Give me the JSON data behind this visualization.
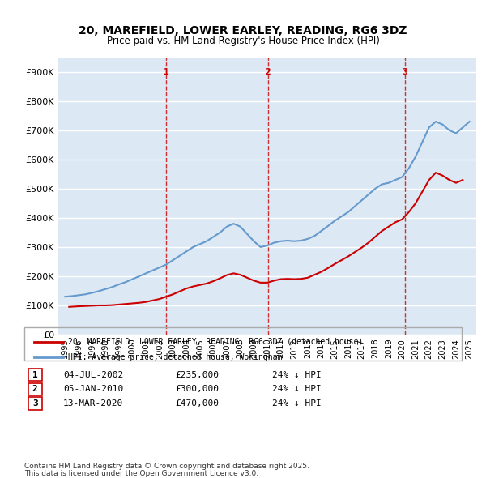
{
  "title": "20, MAREFIELD, LOWER EARLEY, READING, RG6 3DZ",
  "subtitle": "Price paid vs. HM Land Registry's House Price Index (HPI)",
  "legend_line1": "20, MAREFIELD, LOWER EARLEY, READING, RG6 3DZ (detached house)",
  "legend_line2": "HPI: Average price, detached house, Wokingham",
  "footer1": "Contains HM Land Registry data © Crown copyright and database right 2025.",
  "footer2": "This data is licensed under the Open Government Licence v3.0.",
  "table": [
    {
      "num": "1",
      "date": "04-JUL-2002",
      "price": "£235,000",
      "hpi": "24% ↓ HPI"
    },
    {
      "num": "2",
      "date": "05-JAN-2010",
      "price": "£300,000",
      "hpi": "24% ↓ HPI"
    },
    {
      "num": "3",
      "date": "13-MAR-2020",
      "price": "£470,000",
      "hpi": "24% ↓ HPI"
    }
  ],
  "vline_x": [
    2002.5,
    2010.04,
    2020.2
  ],
  "vline_labels": [
    "1",
    "2",
    "3"
  ],
  "ylim": [
    0,
    950000
  ],
  "xlim": [
    1994.5,
    2025.5
  ],
  "yticks": [
    0,
    100000,
    200000,
    300000,
    400000,
    500000,
    600000,
    700000,
    800000,
    900000
  ],
  "ytick_labels": [
    "£0",
    "£100K",
    "£200K",
    "£300K",
    "£400K",
    "£500K",
    "£600K",
    "£700K",
    "£800K",
    "£900K"
  ],
  "xticks": [
    1995,
    1996,
    1997,
    1998,
    1999,
    2000,
    2001,
    2002,
    2003,
    2004,
    2005,
    2006,
    2007,
    2008,
    2009,
    2010,
    2011,
    2012,
    2013,
    2014,
    2015,
    2016,
    2017,
    2018,
    2019,
    2020,
    2021,
    2022,
    2023,
    2024,
    2025
  ],
  "red_line_color": "#cc0000",
  "blue_line_color": "#6699cc",
  "background_color": "#dce9f5",
  "plot_bg": "#dce9f5",
  "grid_color": "#ffffff",
  "vline_color": "#cc0000",
  "hpi_x": [
    1995,
    1995.5,
    1996,
    1996.5,
    1997,
    1997.5,
    1998,
    1998.5,
    1999,
    1999.5,
    2000,
    2000.5,
    2001,
    2001.5,
    2002,
    2002.5,
    2003,
    2003.5,
    2004,
    2004.5,
    2005,
    2005.5,
    2006,
    2006.5,
    2007,
    2007.5,
    2008,
    2008.5,
    2009,
    2009.5,
    2010,
    2010.5,
    2011,
    2011.5,
    2012,
    2012.5,
    2013,
    2013.5,
    2014,
    2014.5,
    2015,
    2015.5,
    2016,
    2016.5,
    2017,
    2017.5,
    2018,
    2018.5,
    2019,
    2019.5,
    2020,
    2020.5,
    2021,
    2021.5,
    2022,
    2022.5,
    2023,
    2023.5,
    2024,
    2024.5,
    2025
  ],
  "hpi_y": [
    130000,
    132000,
    135000,
    138000,
    143000,
    149000,
    156000,
    163000,
    172000,
    180000,
    190000,
    200000,
    210000,
    220000,
    230000,
    240000,
    255000,
    270000,
    285000,
    300000,
    310000,
    320000,
    335000,
    350000,
    370000,
    380000,
    370000,
    345000,
    320000,
    300000,
    305000,
    315000,
    320000,
    322000,
    320000,
    322000,
    328000,
    338000,
    355000,
    372000,
    390000,
    405000,
    420000,
    440000,
    460000,
    480000,
    500000,
    515000,
    520000,
    530000,
    540000,
    570000,
    610000,
    660000,
    710000,
    730000,
    720000,
    700000,
    690000,
    710000,
    730000
  ],
  "price_x": [
    1995.3,
    1996,
    1997,
    1997.5,
    1998,
    1998.5,
    1999,
    1999.5,
    2000,
    2000.5,
    2001,
    2001.5,
    2002,
    2002.5,
    2003,
    2003.5,
    2004,
    2004.5,
    2005,
    2005.5,
    2006,
    2006.5,
    2007,
    2007.5,
    2008,
    2008.5,
    2009,
    2009.5,
    2010,
    2010.5,
    2011,
    2011.5,
    2012,
    2012.5,
    2013,
    2013.5,
    2014,
    2014.5,
    2015,
    2015.5,
    2016,
    2016.5,
    2017,
    2017.5,
    2018,
    2018.5,
    2019,
    2019.5,
    2020,
    2020.5,
    2021,
    2021.5,
    2022,
    2022.5,
    2023,
    2023.5,
    2024,
    2024.5
  ],
  "price_y": [
    95000,
    97000,
    99000,
    100000,
    100000,
    101000,
    103000,
    105000,
    107000,
    109000,
    112000,
    117000,
    122000,
    130000,
    138000,
    148000,
    158000,
    165000,
    170000,
    175000,
    183000,
    193000,
    204000,
    210000,
    205000,
    195000,
    185000,
    178000,
    178000,
    185000,
    190000,
    191000,
    190000,
    191000,
    195000,
    205000,
    215000,
    228000,
    242000,
    255000,
    268000,
    283000,
    298000,
    315000,
    335000,
    355000,
    370000,
    385000,
    395000,
    420000,
    450000,
    490000,
    530000,
    555000,
    545000,
    530000,
    520000,
    530000
  ]
}
